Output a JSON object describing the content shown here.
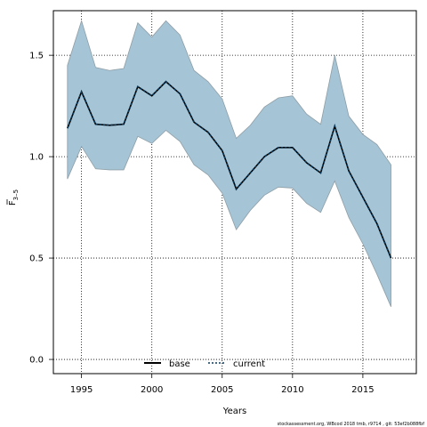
{
  "chart_data": {
    "type": "area",
    "xlabel": "Years",
    "ylabel_main": "F",
    "ylabel_sub": "3–5",
    "xlim": [
      1993,
      2018.8
    ],
    "ylim": [
      -0.07,
      1.72
    ],
    "x_ticks": [
      1995,
      2000,
      2005,
      2010,
      2015
    ],
    "y_ticks": [
      0.0,
      0.5,
      1.0,
      1.5
    ],
    "x_tick_labels": [
      "1995",
      "2000",
      "2005",
      "2010",
      "2015"
    ],
    "y_tick_labels": [
      "0.0",
      "0.5",
      "1.0",
      "1.5"
    ],
    "grid": true,
    "legend_position": "bottom",
    "colors": {
      "band_fill": "#a5c4d6",
      "band_edge": "#8e9ea6",
      "base_line": "#000000",
      "current_line": "#0b3a5c",
      "grid": "#000000"
    },
    "x": [
      1994,
      1995,
      1996,
      1997,
      1998,
      1999,
      2000,
      2001,
      2002,
      2003,
      2004,
      2005,
      2006,
      2007,
      2008,
      2009,
      2010,
      2011,
      2012,
      2013,
      2014,
      2015,
      2016,
      2017
    ],
    "series": [
      {
        "name": "base",
        "style": "solid",
        "values": [
          1.14,
          1.32,
          1.16,
          1.155,
          1.16,
          1.345,
          1.3,
          1.37,
          1.31,
          1.17,
          1.12,
          1.03,
          0.84,
          0.92,
          1.0,
          1.045,
          1.045,
          0.97,
          0.92,
          1.15,
          0.93,
          0.8,
          0.67,
          0.5
        ]
      },
      {
        "name": "current",
        "style": "dotted",
        "values": [
          1.14,
          1.32,
          1.16,
          1.155,
          1.16,
          1.345,
          1.3,
          1.37,
          1.31,
          1.17,
          1.12,
          1.03,
          0.84,
          0.92,
          1.0,
          1.045,
          1.045,
          0.97,
          0.92,
          1.15,
          0.93,
          0.8,
          0.67,
          0.5
        ]
      }
    ],
    "band_upper": [
      1.45,
      1.67,
      1.44,
      1.425,
      1.435,
      1.66,
      1.59,
      1.67,
      1.6,
      1.425,
      1.37,
      1.285,
      1.09,
      1.155,
      1.245,
      1.29,
      1.3,
      1.21,
      1.16,
      1.5,
      1.2,
      1.11,
      1.06,
      0.96
    ],
    "band_lower": [
      0.89,
      1.05,
      0.94,
      0.935,
      0.935,
      1.1,
      1.065,
      1.13,
      1.075,
      0.96,
      0.91,
      0.82,
      0.64,
      0.735,
      0.81,
      0.85,
      0.845,
      0.77,
      0.725,
      0.88,
      0.7,
      0.57,
      0.42,
      0.26
    ]
  },
  "footer": {
    "text": "stockassessment.org, WBcod 2018 tmb, r9714 , git: 53ef2b088fbf"
  }
}
